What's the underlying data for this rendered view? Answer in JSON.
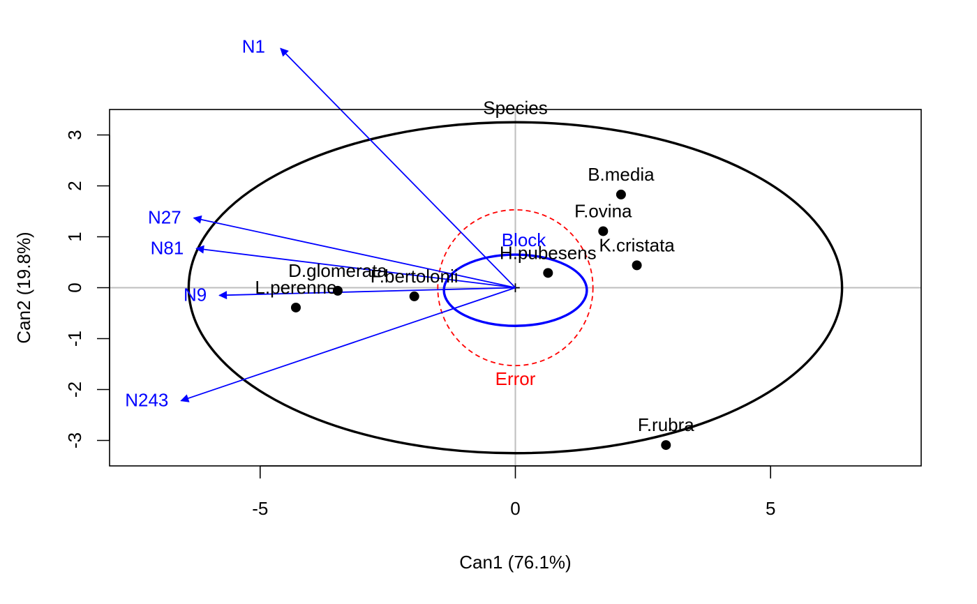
{
  "chart_data": {
    "type": "scatter",
    "xlabel": "Can1 (76.1%)",
    "ylabel": "Can2 (19.8%)",
    "xlim": [
      -7.95,
      7.95
    ],
    "ylim": [
      -3.5,
      3.5
    ],
    "xticks": [
      "-5",
      "0",
      "5"
    ],
    "yticks": [
      "-3",
      "-2",
      "-1",
      "0",
      "1",
      "2",
      "3"
    ],
    "xtick_values": [
      -5,
      0,
      5
    ],
    "ytick_values": [
      -3,
      -2,
      -1,
      0,
      1,
      2,
      3
    ],
    "reference_lines": {
      "x": 0,
      "y": 0,
      "color": "#BEBEBE"
    },
    "points": [
      {
        "name": "B.media",
        "x": 2.07,
        "y": 1.83
      },
      {
        "name": "F.ovina",
        "x": 1.72,
        "y": 1.11
      },
      {
        "name": "K.cristata",
        "x": 2.38,
        "y": 0.44
      },
      {
        "name": "H.pubesens",
        "x": 0.64,
        "y": 0.29
      },
      {
        "name": "F.bertolonii",
        "x": -1.98,
        "y": -0.17
      },
      {
        "name": "D.glomerata",
        "x": -3.48,
        "y": -0.06
      },
      {
        "name": "L.perenne",
        "x": -4.3,
        "y": -0.39
      },
      {
        "name": "F.rubra",
        "x": 2.95,
        "y": -3.09
      }
    ],
    "vectors": {
      "color": "#0000FF",
      "items": [
        {
          "name": "N1",
          "x": -4.6,
          "y": 4.7
        },
        {
          "name": "N27",
          "x": -6.3,
          "y": 1.37
        },
        {
          "name": "N81",
          "x": -6.25,
          "y": 0.77
        },
        {
          "name": "N9",
          "x": -5.8,
          "y": -0.15
        },
        {
          "name": "N243",
          "x": -6.55,
          "y": -2.22
        }
      ]
    },
    "ellipses": [
      {
        "name": "Species",
        "color": "#000000",
        "style": "solid",
        "cx": 0,
        "cy": 0,
        "rx": 6.4,
        "ry": 3.25
      },
      {
        "name": "Block",
        "color": "#0000FF",
        "style": "solid",
        "cx": 0,
        "cy": -0.05,
        "rx": 1.4,
        "ry": 0.7
      },
      {
        "name": "Error",
        "color": "#FF0000",
        "style": "dashed",
        "cx": 0,
        "cy": 0,
        "rx": 1.52,
        "ry": 1.53
      }
    ]
  }
}
